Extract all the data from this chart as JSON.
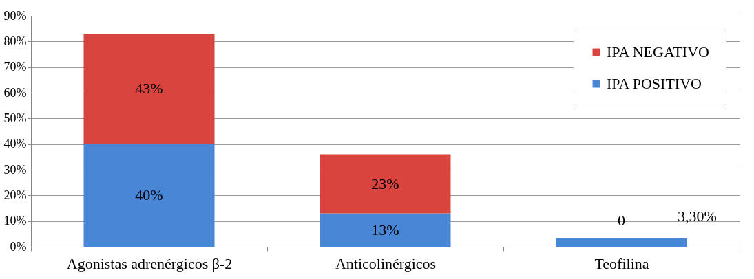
{
  "chart_data": {
    "type": "bar",
    "stacked": true,
    "categories": [
      "Agonistas adrenérgicos β-2",
      "Anticolinérgicos",
      "Teofilina"
    ],
    "series": [
      {
        "name": "IPA POSITIVO",
        "color": "#4a86d6",
        "values": [
          40,
          13,
          3.3
        ],
        "value_labels": [
          "40%",
          "13%",
          "3,30%"
        ]
      },
      {
        "name": "IPA NEGATIVO",
        "color": "#d9443f",
        "values": [
          43,
          23,
          0
        ],
        "value_labels": [
          "43%",
          "23%",
          "0"
        ]
      }
    ],
    "ylim": [
      0,
      90
    ],
    "yticks": [
      {
        "value": 0,
        "label": "0%"
      },
      {
        "value": 10,
        "label": "10%"
      },
      {
        "value": 20,
        "label": "20%"
      },
      {
        "value": 30,
        "label": "30%"
      },
      {
        "value": 40,
        "label": "40%"
      },
      {
        "value": 50,
        "label": "50%"
      },
      {
        "value": 60,
        "label": "60%"
      },
      {
        "value": 70,
        "label": "70%"
      },
      {
        "value": 80,
        "label": "80%"
      },
      {
        "value": 90,
        "label": "90%"
      }
    ],
    "grid": "y",
    "legend": "top right"
  }
}
